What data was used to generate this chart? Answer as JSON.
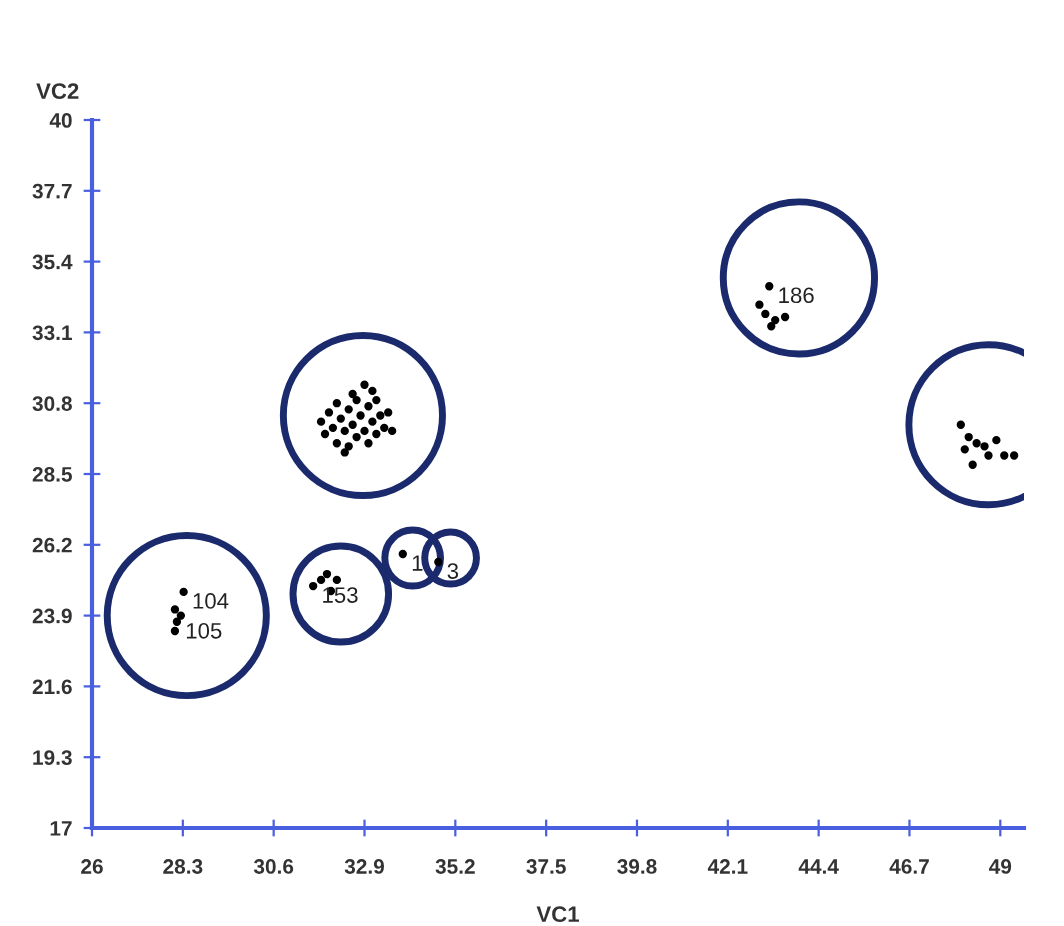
{
  "chart_data": {
    "type": "scatter",
    "xlabel": "VC1",
    "ylabel": "VC2",
    "xlim": [
      26,
      49.6
    ],
    "ylim": [
      17,
      40
    ],
    "xticks": [
      26,
      28.3,
      30.6,
      32.9,
      35.2,
      37.5,
      39.8,
      42.1,
      44.4,
      46.7,
      49
    ],
    "yticks": [
      17,
      19.3,
      21.6,
      23.9,
      26.2,
      28.5,
      30.8,
      33.1,
      35.4,
      37.7,
      40
    ],
    "grid": false,
    "legend": false,
    "marker": "circle",
    "series": [
      {
        "color": "#000000",
        "x": [
          28.32,
          28.1,
          28.15,
          28.1,
          28.25,
          31.8,
          31.6,
          31.95,
          32.2,
          32.05,
          33.87,
          34.77,
          31.8,
          31.9,
          32.0,
          32.1,
          32.2,
          32.2,
          32.3,
          32.4,
          32.5,
          32.5,
          32.6,
          32.7,
          32.7,
          32.8,
          32.9,
          32.9,
          33.0,
          33.0,
          33.1,
          33.2,
          33.2,
          33.3,
          33.4,
          33.5,
          33.6,
          32.4,
          32.6,
          33.1,
          43.15,
          42.9,
          43.05,
          43.3,
          43.55,
          43.2,
          48.0,
          48.2,
          48.1,
          48.4,
          48.7,
          49.1,
          49.35,
          48.3,
          48.6,
          48.9
        ],
        "values": [
          24.67,
          24.1,
          23.7,
          23.4,
          23.9,
          25.06,
          24.86,
          25.25,
          25.06,
          24.7,
          25.9,
          25.64,
          30.2,
          29.8,
          30.5,
          30.0,
          29.5,
          30.8,
          30.3,
          29.9,
          30.6,
          29.4,
          30.1,
          30.9,
          29.7,
          30.4,
          29.9,
          31.4,
          30.7,
          29.5,
          30.2,
          30.9,
          29.8,
          30.4,
          30.0,
          30.5,
          29.9,
          29.2,
          31.1,
          31.2,
          34.6,
          34.0,
          33.7,
          33.5,
          33.6,
          33.3,
          30.1,
          29.7,
          29.3,
          29.5,
          29.1,
          29.1,
          29.1,
          28.8,
          29.4,
          29.6
        ]
      }
    ],
    "annotations": [
      {
        "text": "104",
        "x": 28.32,
        "y": 24.67
      },
      {
        "text": "105",
        "x": 28.15,
        "y": 23.7
      },
      {
        "text": "153",
        "x": 31.6,
        "y": 24.86
      },
      {
        "text": "1",
        "x": 33.87,
        "y": 25.9
      },
      {
        "text": "3",
        "x": 34.77,
        "y": 25.64
      },
      {
        "text": "186",
        "x": 43.15,
        "y": 34.6
      }
    ]
  }
}
